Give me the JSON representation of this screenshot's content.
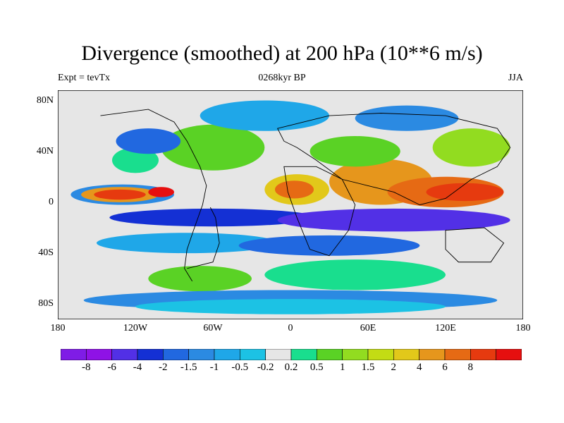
{
  "title": "Divergence (smoothed) at 200 hPa (10**6 m/s)",
  "subtitle_left": "Expt = tevTx",
  "subtitle_center": "0268kyr BP",
  "subtitle_right": "JJA",
  "map": {
    "projection": "cylindrical equidistant",
    "lon_range": [
      -180,
      180
    ],
    "lat_range": [
      -90,
      90
    ],
    "y_axis_labels": [
      "80N",
      "40N",
      "0",
      "40S",
      "80S"
    ],
    "x_axis_labels": [
      "180",
      "120W",
      "60W",
      "0",
      "60E",
      "120E",
      "180"
    ],
    "background_color": "#e6e6e6",
    "coastline_color": "#000000"
  },
  "colorbar": {
    "colors": [
      "#7f1ce6",
      "#8f12e6",
      "#5230e6",
      "#1430d4",
      "#2168e0",
      "#2b8ae2",
      "#1fa7e8",
      "#1cc2e4",
      "#e6e6e6",
      "#19de8e",
      "#5ad225",
      "#92dc20",
      "#c3dc14",
      "#e2c81a",
      "#e6961c",
      "#e66a14",
      "#e63a0f",
      "#e60f0f"
    ],
    "labels": [
      "-8",
      "-6",
      "-4",
      "-2",
      "-1.5",
      "-1",
      "-0.5",
      "-0.2",
      "0.2",
      "0.5",
      "1",
      "1.5",
      "2",
      "4",
      "6",
      "8"
    ]
  }
}
